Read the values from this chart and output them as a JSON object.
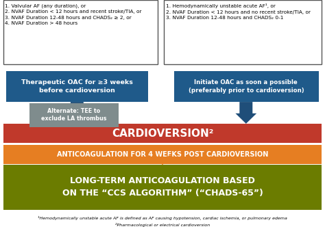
{
  "bg_color": "#ffffff",
  "box_left_text": "1. Valvular AF (any duration), or\n2. NVAF Duration < 12 hours and recent stroke/TIA, or\n3. NVAF Duration 12-48 hours and CHADS₂ ≥ 2, or\n4. NVAF Duration > 48 hours",
  "box_right_text": "1. Hemodynamically unstable acute AF¹, or\n2. NVAF Duration < 12 hours and no recent stroke/TIA, or\n3. NVAF Duration 12-48 hours and CHADS₂ 0-1",
  "blue_left_text": "Therapeutic OAC for ≥3 weeks\nbefore cardioversion",
  "blue_right_text": "Initiate OAC as soon a possible\n(preferably prior to cardioversion)",
  "gray_box_text": "Alternate: TEE to\nexclude LA thrombus",
  "red_box_text": "CARDIOVERSION²",
  "orange_box_text": "ANTICOAGULATION FOR 4 WEEKS POST CARDIOVERSION",
  "green_box_text": "LONG-TERM ANTICOAGULATION BASED\nON THE “CCS ALGORITHM” (“CHADS-65”)",
  "footnote1": "¹Hemodynamically unstable acute AF is defined as AF causing hypotension, cardiac ischemia, or pulmonary edema",
  "footnote2": "²Pharmacological or electrical cardioversion",
  "color_blue_dark": "#1f4e79",
  "color_blue_box": "#1f5a8a",
  "color_red": "#c0392b",
  "color_orange": "#e67e22",
  "color_green": "#6b7c00",
  "color_gray": "#7f8c8d",
  "color_white": "#ffffff",
  "color_black": "#000000",
  "color_outline": "#555555"
}
